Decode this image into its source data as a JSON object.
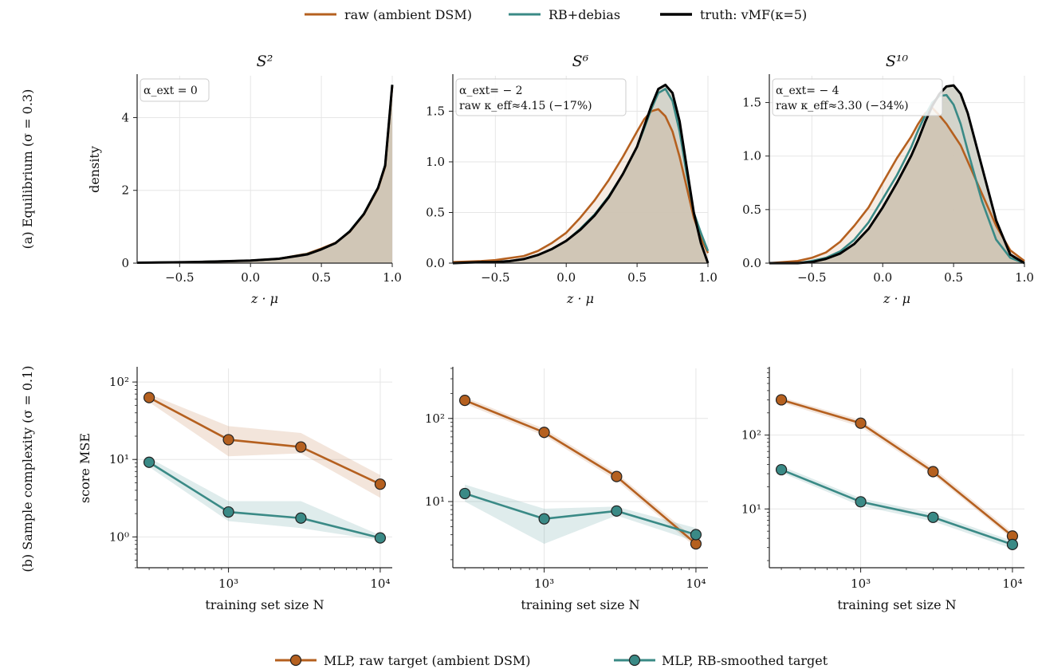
{
  "colors": {
    "raw": "#b5601f",
    "rb": "#3a8a86",
    "truth": "#000000",
    "fill": "#d2d2c8"
  },
  "legend_top": {
    "items": [
      "raw (ambient DSM)",
      "RB+debias",
      "truth: vMF(κ=5)"
    ]
  },
  "legend_bottom": {
    "items": [
      "MLP, raw target (ambient DSM)",
      "MLP, RB-smoothed target"
    ]
  },
  "row_labels": {
    "a": "(a) Equilibrium (σ = 0.3)",
    "b": "(b) Sample complexity (σ = 0.1)"
  },
  "chart_data": [
    {
      "type": "line",
      "title": "S²",
      "xlabel": "z · μ",
      "ylabel": "density",
      "xlim": [
        -0.8,
        1.0
      ],
      "ylim": [
        0,
        5.15
      ],
      "xticks": [
        "−0.5",
        "0.0",
        "0.5",
        "1.0"
      ],
      "yticks": [
        "0",
        "2",
        "4"
      ],
      "annotation": [
        "α_ext = 0"
      ],
      "series": [
        {
          "name": "raw (ambient DSM)",
          "x": [
            -0.8,
            -0.6,
            -0.4,
            -0.2,
            0.0,
            0.2,
            0.4,
            0.5,
            0.6,
            0.7,
            0.8,
            0.9,
            0.95,
            1.0
          ],
          "y": [
            0.01,
            0.02,
            0.03,
            0.05,
            0.07,
            0.12,
            0.26,
            0.4,
            0.56,
            0.86,
            1.34,
            2.05,
            2.65,
            4.85
          ]
        },
        {
          "name": "RB+debias",
          "x": [
            -0.8,
            -0.6,
            -0.4,
            -0.2,
            0.0,
            0.2,
            0.4,
            0.5,
            0.6,
            0.7,
            0.8,
            0.9,
            0.95,
            1.0
          ],
          "y": [
            0.01,
            0.02,
            0.03,
            0.05,
            0.07,
            0.12,
            0.25,
            0.38,
            0.55,
            0.88,
            1.36,
            2.08,
            2.7,
            4.9
          ]
        },
        {
          "name": "truth: vMF(κ=5)",
          "x": [
            -0.8,
            -0.6,
            -0.4,
            -0.2,
            0.0,
            0.2,
            0.4,
            0.5,
            0.6,
            0.7,
            0.8,
            0.9,
            0.95,
            1.0
          ],
          "y": [
            0.01,
            0.02,
            0.03,
            0.05,
            0.07,
            0.12,
            0.24,
            0.38,
            0.55,
            0.87,
            1.35,
            2.07,
            2.68,
            4.9
          ]
        }
      ]
    },
    {
      "type": "line",
      "title": "S⁶",
      "xlabel": "z · μ",
      "ylabel": "",
      "xlim": [
        -0.8,
        1.0
      ],
      "ylim": [
        0,
        1.85
      ],
      "xticks": [
        "−0.5",
        "0.0",
        "0.5",
        "1.0"
      ],
      "yticks": [
        "0.0",
        "0.5",
        "1.0",
        "1.5"
      ],
      "annotation": [
        "α_ext= − 2",
        "raw κ_eff≈4.15 (−17%)"
      ],
      "series": [
        {
          "name": "raw (ambient DSM)",
          "x": [
            -0.8,
            -0.6,
            -0.5,
            -0.4,
            -0.3,
            -0.2,
            -0.1,
            0.0,
            0.1,
            0.2,
            0.3,
            0.4,
            0.5,
            0.55,
            0.6,
            0.65,
            0.7,
            0.75,
            0.8,
            0.85,
            0.9,
            0.95,
            1.0
          ],
          "y": [
            0.01,
            0.02,
            0.03,
            0.05,
            0.07,
            0.12,
            0.2,
            0.3,
            0.45,
            0.62,
            0.82,
            1.05,
            1.3,
            1.42,
            1.5,
            1.52,
            1.45,
            1.3,
            1.05,
            0.75,
            0.45,
            0.25,
            0.1
          ]
        },
        {
          "name": "RB+debias",
          "x": [
            -0.8,
            -0.6,
            -0.5,
            -0.4,
            -0.3,
            -0.2,
            -0.1,
            0.0,
            0.1,
            0.2,
            0.3,
            0.4,
            0.5,
            0.55,
            0.6,
            0.65,
            0.7,
            0.75,
            0.8,
            0.85,
            0.9,
            0.95,
            1.0
          ],
          "y": [
            0.0,
            0.01,
            0.01,
            0.02,
            0.04,
            0.08,
            0.14,
            0.22,
            0.34,
            0.48,
            0.66,
            0.88,
            1.15,
            1.33,
            1.52,
            1.68,
            1.72,
            1.6,
            1.3,
            0.88,
            0.5,
            0.3,
            0.12
          ]
        },
        {
          "name": "truth: vMF(κ=5)",
          "x": [
            -0.8,
            -0.6,
            -0.5,
            -0.4,
            -0.3,
            -0.2,
            -0.1,
            0.0,
            0.1,
            0.2,
            0.3,
            0.4,
            0.5,
            0.55,
            0.6,
            0.65,
            0.7,
            0.75,
            0.8,
            0.85,
            0.9,
            0.95,
            1.0
          ],
          "y": [
            0.0,
            0.01,
            0.01,
            0.02,
            0.04,
            0.08,
            0.14,
            0.22,
            0.33,
            0.47,
            0.65,
            0.88,
            1.15,
            1.35,
            1.55,
            1.72,
            1.76,
            1.68,
            1.4,
            0.95,
            0.5,
            0.2,
            0.0
          ]
        }
      ]
    },
    {
      "type": "line",
      "title": "S¹⁰",
      "xlabel": "z · μ",
      "ylabel": "",
      "xlim": [
        -0.8,
        1.0
      ],
      "ylim": [
        0,
        1.75
      ],
      "xticks": [
        "−0.5",
        "0.0",
        "0.5",
        "1.0"
      ],
      "yticks": [
        "0.0",
        "0.5",
        "1.0",
        "1.5"
      ],
      "annotation": [
        "α_ext= − 4",
        "raw κ_eff≈3.30 (−34%)"
      ],
      "series": [
        {
          "name": "raw (ambient DSM)",
          "x": [
            -0.8,
            -0.6,
            -0.5,
            -0.4,
            -0.3,
            -0.2,
            -0.1,
            0.0,
            0.1,
            0.2,
            0.25,
            0.3,
            0.35,
            0.4,
            0.45,
            0.5,
            0.55,
            0.6,
            0.7,
            0.8,
            0.9,
            1.0
          ],
          "y": [
            0.0,
            0.02,
            0.05,
            0.1,
            0.2,
            0.35,
            0.52,
            0.75,
            0.98,
            1.18,
            1.3,
            1.4,
            1.45,
            1.38,
            1.3,
            1.2,
            1.1,
            0.95,
            0.65,
            0.35,
            0.12,
            0.02
          ]
        },
        {
          "name": "RB+debias",
          "x": [
            -0.8,
            -0.6,
            -0.5,
            -0.4,
            -0.3,
            -0.2,
            -0.1,
            0.0,
            0.1,
            0.2,
            0.25,
            0.3,
            0.35,
            0.4,
            0.45,
            0.5,
            0.55,
            0.6,
            0.7,
            0.8,
            0.9,
            1.0
          ],
          "y": [
            0.0,
            0.0,
            0.02,
            0.05,
            0.11,
            0.22,
            0.38,
            0.6,
            0.82,
            1.08,
            1.24,
            1.38,
            1.5,
            1.56,
            1.57,
            1.48,
            1.3,
            1.05,
            0.58,
            0.22,
            0.05,
            0.0
          ]
        },
        {
          "name": "truth: vMF(κ=5)",
          "x": [
            -0.8,
            -0.6,
            -0.5,
            -0.4,
            -0.3,
            -0.2,
            -0.1,
            0.0,
            0.1,
            0.2,
            0.25,
            0.3,
            0.35,
            0.4,
            0.45,
            0.5,
            0.55,
            0.6,
            0.7,
            0.8,
            0.9,
            1.0
          ],
          "y": [
            0.0,
            0.0,
            0.01,
            0.04,
            0.09,
            0.18,
            0.32,
            0.52,
            0.75,
            1.0,
            1.15,
            1.32,
            1.47,
            1.58,
            1.65,
            1.66,
            1.58,
            1.4,
            0.9,
            0.4,
            0.08,
            0.0
          ]
        }
      ]
    },
    {
      "type": "line",
      "scale": "log",
      "xlabel": "training set size N",
      "ylabel": "score MSE",
      "xlim": [
        250,
        12000
      ],
      "ylim": [
        0.4,
        150
      ],
      "xticks": [
        {
          "v": 1000,
          "label": "10³"
        },
        {
          "v": 10000,
          "label": "10⁴"
        }
      ],
      "yticks": [
        {
          "v": 1,
          "label": "10⁰"
        },
        {
          "v": 10,
          "label": "10¹"
        },
        {
          "v": 100,
          "label": "10²"
        }
      ],
      "x": [
        300,
        1000,
        3000,
        10000
      ],
      "series": [
        {
          "name": "MLP, raw target (ambient DSM)",
          "values": [
            63,
            18,
            14.5,
            4.8
          ],
          "lo": [
            55,
            11,
            12,
            3.2
          ],
          "hi": [
            70,
            27,
            22,
            6.3
          ]
        },
        {
          "name": "MLP, RB-smoothed target",
          "values": [
            9.2,
            2.1,
            1.75,
            0.97
          ],
          "lo": [
            8.0,
            1.6,
            1.3,
            0.9
          ],
          "hi": [
            10.5,
            2.9,
            2.9,
            1.05
          ]
        }
      ]
    },
    {
      "type": "line",
      "scale": "log",
      "xlabel": "training set size N",
      "ylabel": "",
      "xlim": [
        250,
        12000
      ],
      "ylim": [
        1.6,
        400
      ],
      "xticks": [
        {
          "v": 1000,
          "label": "10³"
        },
        {
          "v": 10000,
          "label": "10⁴"
        }
      ],
      "yticks": [
        {
          "v": 10,
          "label": "10¹"
        },
        {
          "v": 100,
          "label": "10²"
        }
      ],
      "x": [
        300,
        1000,
        3000,
        10000
      ],
      "series": [
        {
          "name": "MLP, raw target (ambient DSM)",
          "values": [
            165,
            68,
            20,
            3.1
          ],
          "lo": [
            150,
            62,
            18,
            2.8
          ],
          "hi": [
            180,
            75,
            22,
            3.5
          ]
        },
        {
          "name": "MLP, RB-smoothed target",
          "values": [
            12.5,
            6.2,
            7.7,
            4.0
          ],
          "lo": [
            10,
            3.1,
            6.8,
            3.3
          ],
          "hi": [
            16,
            8.2,
            8.7,
            4.8
          ]
        }
      ]
    },
    {
      "type": "line",
      "scale": "log",
      "xlabel": "training set size N",
      "ylabel": "",
      "xlim": [
        250,
        12000
      ],
      "ylim": [
        1.6,
        800
      ],
      "xticks": [
        {
          "v": 1000,
          "label": "10³"
        },
        {
          "v": 10000,
          "label": "10⁴"
        }
      ],
      "yticks": [
        {
          "v": 10,
          "label": "10¹"
        },
        {
          "v": 100,
          "label": "10²"
        }
      ],
      "x": [
        300,
        1000,
        3000,
        10000
      ],
      "series": [
        {
          "name": "MLP, raw target (ambient DSM)",
          "values": [
            300,
            145,
            32,
            4.3
          ],
          "lo": [
            275,
            130,
            29,
            3.9
          ],
          "hi": [
            325,
            160,
            36,
            4.8
          ]
        },
        {
          "name": "MLP, RB-smoothed target",
          "values": [
            34,
            12.5,
            7.7,
            3.3
          ],
          "lo": [
            31,
            11,
            6.8,
            2.9
          ],
          "hi": [
            38,
            14,
            8.7,
            3.7
          ]
        }
      ]
    }
  ]
}
